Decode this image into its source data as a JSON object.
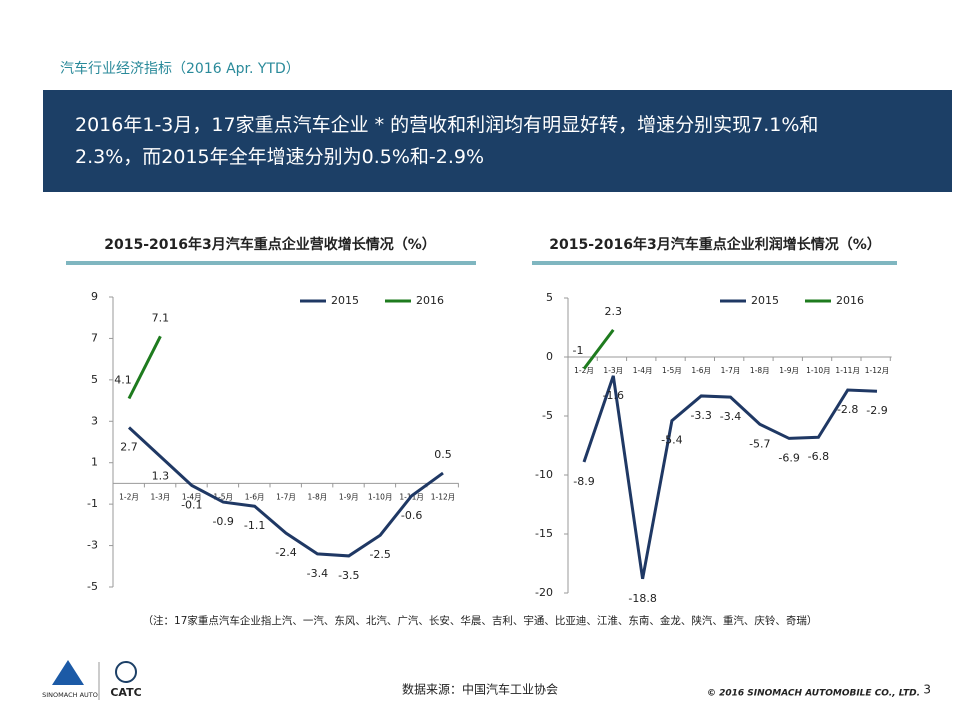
{
  "header": {
    "section_title": "汽车行业经济指标（2016 Apr. YTD）",
    "headline_lines": [
      "2016年1-3月，17家重点汽车企业 * 的营收和利润均有明显好转，增速分别实现7.1%和",
      "2.3%，而2015年全年增速分别为0.5%和-2.9%"
    ]
  },
  "chart_data": [
    {
      "type": "line",
      "title": "2015-2016年3月汽车重点企业营收增长情况（%）",
      "categories": [
        "1-2月",
        "1-3月",
        "1-4月",
        "1-5月",
        "1-6月",
        "1-7月",
        "1-8月",
        "1-9月",
        "1-10月",
        "1-11月",
        "1-12月"
      ],
      "series": [
        {
          "name": "2015",
          "color": "#1f3864",
          "values": [
            2.7,
            1.3,
            -0.1,
            -0.9,
            -1.1,
            -2.4,
            -3.4,
            -3.5,
            -2.5,
            -0.6,
            0.5
          ]
        },
        {
          "name": "2016",
          "color": "#1e7b1e",
          "values": [
            4.1,
            7.1,
            null,
            null,
            null,
            null,
            null,
            null,
            null,
            null,
            null
          ]
        }
      ],
      "ylim": [
        -5,
        9
      ],
      "yticks": [
        -5,
        -3,
        -1,
        1,
        3,
        5,
        7,
        9
      ],
      "legend": "upper right"
    },
    {
      "type": "line",
      "title": "2015-2016年3月汽车重点企业利润增长情况（%）",
      "categories": [
        "1-2月",
        "1-3月",
        "1-4月",
        "1-5月",
        "1-6月",
        "1-7月",
        "1-8月",
        "1-9月",
        "1-10月",
        "1-11月",
        "1-12月"
      ],
      "series": [
        {
          "name": "2015",
          "color": "#1f3864",
          "values": [
            -8.9,
            -1.6,
            -18.8,
            -5.4,
            -3.3,
            -3.4,
            -5.7,
            -6.9,
            -6.8,
            -2.8,
            -2.9
          ]
        },
        {
          "name": "2016",
          "color": "#1e7b1e",
          "values": [
            -1,
            2.3,
            null,
            null,
            null,
            null,
            null,
            null,
            null,
            null,
            null
          ]
        }
      ],
      "ylim": [
        -20,
        5
      ],
      "yticks": [
        -20,
        -15,
        -10,
        -5,
        0,
        5
      ],
      "legend": "upper right"
    }
  ],
  "footer": {
    "note": "（注：17家重点汽车企业指上汽、一汽、东风、北汽、广汽、长安、华晨、吉利、宇通、比亚迪、江淮、东南、金龙、陕汽、重汽、庆铃、奇瑞）",
    "source": "数据来源：中国汽车工业协会",
    "copyright": "© 2016 SINOMACH AUTOMOBILE CO., LTD.",
    "page": "3",
    "logo_left": "SINOMACH AUTO",
    "logo_right": "CATC"
  }
}
